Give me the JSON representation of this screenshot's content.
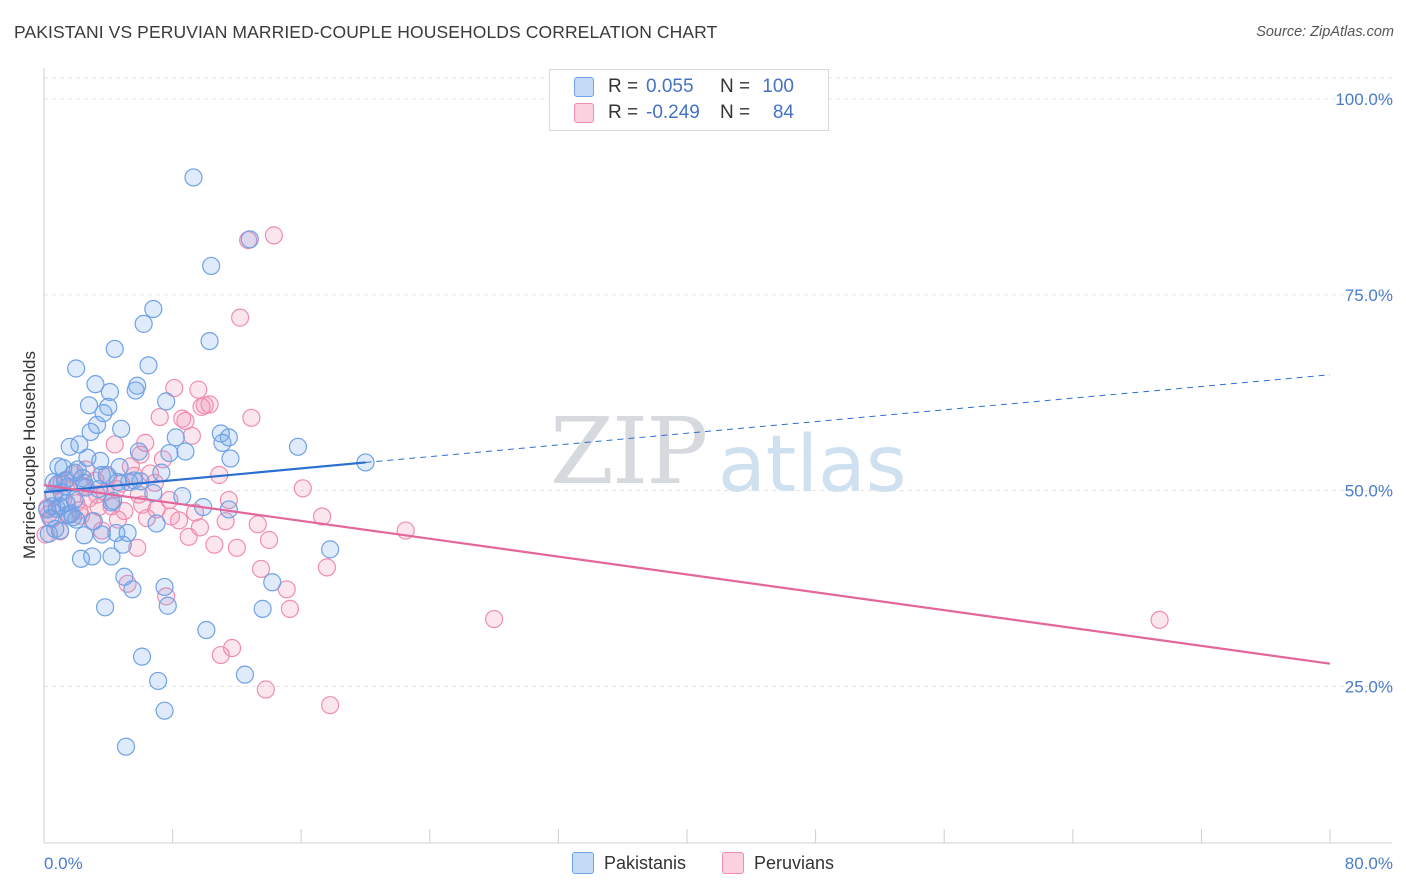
{
  "header": {
    "title": "PAKISTANI VS PERUVIAN MARRIED-COUPLE HOUSEHOLDS CORRELATION CHART",
    "source": "Source: ZipAtlas.com"
  },
  "watermark": {
    "zip": "ZIP",
    "atlas": "atlas"
  },
  "legend": {
    "rows": [
      {
        "r_label": "R =",
        "r_value": "0.055",
        "n_label": "N =",
        "n_value": "100"
      },
      {
        "r_label": "R =",
        "r_value": "-0.249",
        "n_label": "N =",
        "n_value": "84"
      }
    ]
  },
  "bottom_legend": {
    "pakistanis": "Pakistanis",
    "peruvians": "Peruvians"
  },
  "chart_data": {
    "type": "scatter",
    "title": "PAKISTANI VS PERUVIAN MARRIED-COUPLE HOUSEHOLDS CORRELATION CHART",
    "xlabel": "",
    "ylabel": "Married-couple Households",
    "xlim": [
      0,
      80
    ],
    "ylim": [
      5,
      105
    ],
    "x_tick_labels": [
      "0.0%",
      "80.0%"
    ],
    "y_ticks": [
      25,
      50,
      75,
      100
    ],
    "y_tick_labels": [
      "25.0%",
      "50.0%",
      "75.0%",
      "100.0%"
    ],
    "grid": true,
    "colors": {
      "pakistanis": "#6fa2e6",
      "peruvians": "#f08db1",
      "trend_blue": "#2b6fd1",
      "trend_pink": "#e3679a"
    },
    "series": [
      {
        "name": "Pakistanis",
        "R": 0.055,
        "N": 100,
        "trend": {
          "x": [
            0,
            20
          ],
          "y": [
            49.8,
            53.6
          ],
          "dashed_to": [
            80,
            64.8
          ]
        },
        "points": [
          [
            0.3,
            44.5
          ],
          [
            0.4,
            46.5
          ],
          [
            0.5,
            48
          ],
          [
            0.6,
            49.6
          ],
          [
            0.7,
            45.1
          ],
          [
            0.8,
            47.7
          ],
          [
            0.9,
            50.9
          ],
          [
            1.0,
            44.9
          ],
          [
            1.1,
            49.8
          ],
          [
            1.2,
            52.9
          ],
          [
            1.3,
            51.3
          ],
          [
            1.4,
            48.4
          ],
          [
            1.5,
            50.5
          ],
          [
            1.6,
            55.6
          ],
          [
            1.7,
            47.1
          ],
          [
            1.8,
            46.6
          ],
          [
            1.9,
            52.3
          ],
          [
            2.0,
            46.3
          ],
          [
            2.0,
            65.6
          ],
          [
            2.1,
            52.7
          ],
          [
            2.2,
            55.9
          ],
          [
            2.3,
            41.3
          ],
          [
            2.4,
            51.6
          ],
          [
            2.5,
            44.3
          ],
          [
            2.6,
            50.4
          ],
          [
            2.7,
            54.2
          ],
          [
            2.8,
            60.9
          ],
          [
            2.9,
            57.5
          ],
          [
            3.0,
            41.6
          ],
          [
            3.1,
            46.1
          ],
          [
            3.2,
            63.6
          ],
          [
            3.3,
            58.4
          ],
          [
            3.4,
            50.2
          ],
          [
            3.5,
            53.8
          ],
          [
            3.6,
            44.4
          ],
          [
            3.7,
            59.9
          ],
          [
            3.8,
            35.1
          ],
          [
            3.9,
            52.0
          ],
          [
            4.0,
            60.7
          ],
          [
            4.1,
            62.6
          ],
          [
            4.2,
            41.6
          ],
          [
            4.3,
            48.7
          ],
          [
            4.4,
            68.1
          ],
          [
            4.5,
            44.6
          ],
          [
            4.6,
            51.1
          ],
          [
            4.7,
            53.0
          ],
          [
            4.8,
            57.9
          ],
          [
            4.9,
            43.1
          ],
          [
            5.0,
            39.0
          ],
          [
            5.1,
            17.3
          ],
          [
            5.2,
            44.6
          ],
          [
            5.3,
            51.1
          ],
          [
            5.5,
            37.4
          ],
          [
            5.6,
            51.3
          ],
          [
            5.7,
            62.8
          ],
          [
            5.8,
            63.4
          ],
          [
            5.9,
            55.0
          ],
          [
            6.0,
            51.2
          ],
          [
            6.1,
            28.8
          ],
          [
            6.2,
            71.3
          ],
          [
            6.5,
            66.0
          ],
          [
            6.8,
            73.2
          ],
          [
            7.0,
            45.8
          ],
          [
            7.1,
            25.7
          ],
          [
            7.3,
            52.3
          ],
          [
            7.5,
            21.9
          ],
          [
            7.5,
            37.7
          ],
          [
            7.6,
            61.4
          ],
          [
            7.7,
            35.3
          ],
          [
            7.8,
            54.8
          ],
          [
            8.2,
            56.8
          ],
          [
            8.6,
            49.3
          ],
          [
            8.8,
            55.0
          ],
          [
            9.3,
            90.0
          ],
          [
            9.9,
            47.9
          ],
          [
            10.1,
            32.2
          ],
          [
            10.3,
            69.1
          ],
          [
            10.4,
            78.7
          ],
          [
            11.0,
            57.3
          ],
          [
            11.1,
            56.1
          ],
          [
            11.5,
            56.8
          ],
          [
            11.6,
            54.1
          ],
          [
            11.5,
            47.6
          ],
          [
            12.5,
            26.5
          ],
          [
            12.8,
            82.1
          ],
          [
            13.6,
            34.9
          ],
          [
            14.2,
            38.3
          ],
          [
            15.8,
            55.6
          ],
          [
            17.8,
            42.5
          ],
          [
            20.0,
            53.6
          ],
          [
            0.6,
            51.1
          ],
          [
            1.0,
            48.0
          ],
          [
            1.5,
            46.9
          ],
          [
            2.5,
            51.0
          ],
          [
            3.6,
            52.0
          ],
          [
            4.2,
            48.5
          ],
          [
            0.2,
            47.6
          ],
          [
            0.9,
            53.1
          ],
          [
            1.9,
            48.9
          ],
          [
            6.8,
            49.7
          ]
        ]
      },
      {
        "name": "Peruvians",
        "R": -0.249,
        "N": 84,
        "trend": {
          "x": [
            0,
            80
          ],
          "y": [
            50.7,
            27.9
          ]
        },
        "points": [
          [
            0.1,
            44.4
          ],
          [
            0.3,
            47.0
          ],
          [
            0.5,
            46.4
          ],
          [
            0.6,
            49.2
          ],
          [
            0.8,
            50.7
          ],
          [
            1.0,
            44.8
          ],
          [
            1.2,
            48.9
          ],
          [
            1.4,
            51.4
          ],
          [
            1.6,
            46.9
          ],
          [
            1.8,
            52.1
          ],
          [
            2.0,
            48.4
          ],
          [
            2.2,
            47.5
          ],
          [
            2.4,
            50.5
          ],
          [
            2.6,
            52.7
          ],
          [
            2.8,
            49.0
          ],
          [
            3.0,
            46.1
          ],
          [
            3.2,
            51.3
          ],
          [
            3.4,
            47.9
          ],
          [
            3.6,
            44.9
          ],
          [
            3.8,
            49.8
          ],
          [
            4.0,
            51.8
          ],
          [
            4.2,
            48.0
          ],
          [
            4.4,
            55.9
          ],
          [
            4.6,
            46.3
          ],
          [
            4.8,
            50.9
          ],
          [
            5.0,
            47.4
          ],
          [
            5.2,
            38.1
          ],
          [
            5.4,
            53.1
          ],
          [
            5.6,
            51.9
          ],
          [
            5.8,
            42.7
          ],
          [
            5.9,
            49.5
          ],
          [
            6.0,
            54.6
          ],
          [
            6.3,
            56.1
          ],
          [
            6.4,
            46.5
          ],
          [
            6.6,
            52.2
          ],
          [
            6.9,
            51.0
          ],
          [
            7.0,
            47.6
          ],
          [
            7.2,
            59.4
          ],
          [
            7.4,
            54.0
          ],
          [
            7.6,
            36.5
          ],
          [
            7.8,
            48.8
          ],
          [
            7.9,
            46.7
          ],
          [
            8.1,
            63.1
          ],
          [
            8.4,
            46.2
          ],
          [
            8.6,
            59.2
          ],
          [
            8.8,
            58.9
          ],
          [
            9.0,
            44.1
          ],
          [
            9.2,
            57.0
          ],
          [
            9.4,
            47.2
          ],
          [
            9.6,
            62.9
          ],
          [
            9.7,
            45.3
          ],
          [
            9.8,
            60.7
          ],
          [
            10.0,
            60.9
          ],
          [
            10.3,
            61.0
          ],
          [
            10.6,
            43.1
          ],
          [
            10.9,
            52.0
          ],
          [
            11.0,
            29.0
          ],
          [
            11.3,
            46.1
          ],
          [
            11.5,
            48.8
          ],
          [
            11.7,
            29.9
          ],
          [
            12.0,
            42.7
          ],
          [
            12.2,
            72.1
          ],
          [
            12.7,
            82.0
          ],
          [
            12.9,
            59.3
          ],
          [
            13.3,
            45.7
          ],
          [
            13.5,
            40.0
          ],
          [
            13.8,
            24.6
          ],
          [
            14.0,
            43.7
          ],
          [
            14.3,
            82.6
          ],
          [
            15.1,
            37.4
          ],
          [
            15.3,
            34.9
          ],
          [
            16.1,
            50.3
          ],
          [
            17.3,
            46.7
          ],
          [
            17.6,
            40.2
          ],
          [
            17.8,
            22.6
          ],
          [
            22.5,
            44.9
          ],
          [
            28.0,
            33.6
          ],
          [
            69.4,
            33.5
          ],
          [
            0.2,
            47.8
          ],
          [
            1.1,
            51.0
          ],
          [
            2.3,
            46.8
          ],
          [
            3.3,
            49.5
          ],
          [
            4.5,
            50.2
          ],
          [
            6.1,
            48.2
          ]
        ]
      }
    ]
  }
}
